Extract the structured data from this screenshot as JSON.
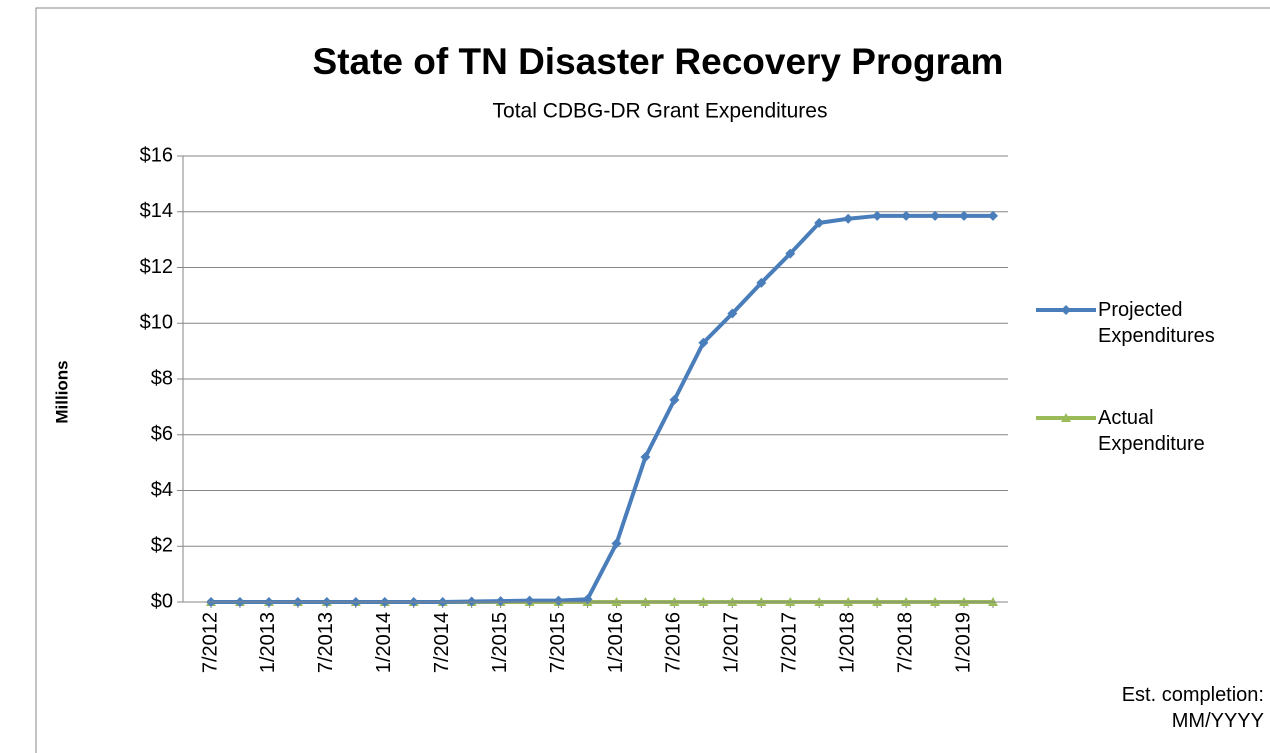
{
  "chart_data": {
    "type": "line",
    "title": "State of TN Disaster Recovery Program",
    "subtitle": "Total CDBG-DR Grant Expenditures",
    "y_label": "Millions",
    "annotation": "Est. completion: MM/YYYY",
    "categories": [
      "7/2012",
      null,
      "1/2013",
      null,
      "7/2013",
      null,
      "1/2014",
      null,
      "7/2014",
      null,
      "1/2015",
      null,
      "7/2015",
      null,
      "1/2016",
      null,
      "7/2016",
      null,
      "1/2017",
      null,
      "7/2017",
      null,
      "1/2018",
      null,
      "7/2018",
      null,
      "1/2019",
      null
    ],
    "series": [
      {
        "name": "Projected Expenditures",
        "color": "#4a7ebb",
        "marker": "diamond",
        "values": [
          0,
          0,
          0,
          0,
          0,
          0,
          0,
          0,
          0,
          0.02,
          0.03,
          0.05,
          0.05,
          0.1,
          2.1,
          5.2,
          7.25,
          9.3,
          10.35,
          11.45,
          12.5,
          13.6,
          13.75,
          13.85,
          13.85,
          13.85,
          13.85,
          13.85
        ]
      },
      {
        "name": "Actual Expenditure",
        "color": "#9bbb59",
        "marker": "triangle",
        "values": [
          0,
          0,
          0,
          0,
          0,
          0,
          0,
          0,
          0,
          0,
          0,
          0,
          0,
          0,
          0,
          0,
          0,
          0,
          0,
          0,
          0,
          0,
          0,
          0,
          0,
          0,
          0,
          0
        ]
      }
    ],
    "ylim": [
      0,
      16
    ],
    "yticks": [
      {
        "value": 0,
        "label": "$0"
      },
      {
        "value": 2,
        "label": "$2"
      },
      {
        "value": 4,
        "label": "$4"
      },
      {
        "value": 6,
        "label": "$6"
      },
      {
        "value": 8,
        "label": "$8"
      },
      {
        "value": 10,
        "label": "$10"
      },
      {
        "value": 12,
        "label": "$12"
      },
      {
        "value": 14,
        "label": "$14"
      },
      {
        "value": 16,
        "label": "$16"
      }
    ],
    "grid": true,
    "legend": "right"
  }
}
